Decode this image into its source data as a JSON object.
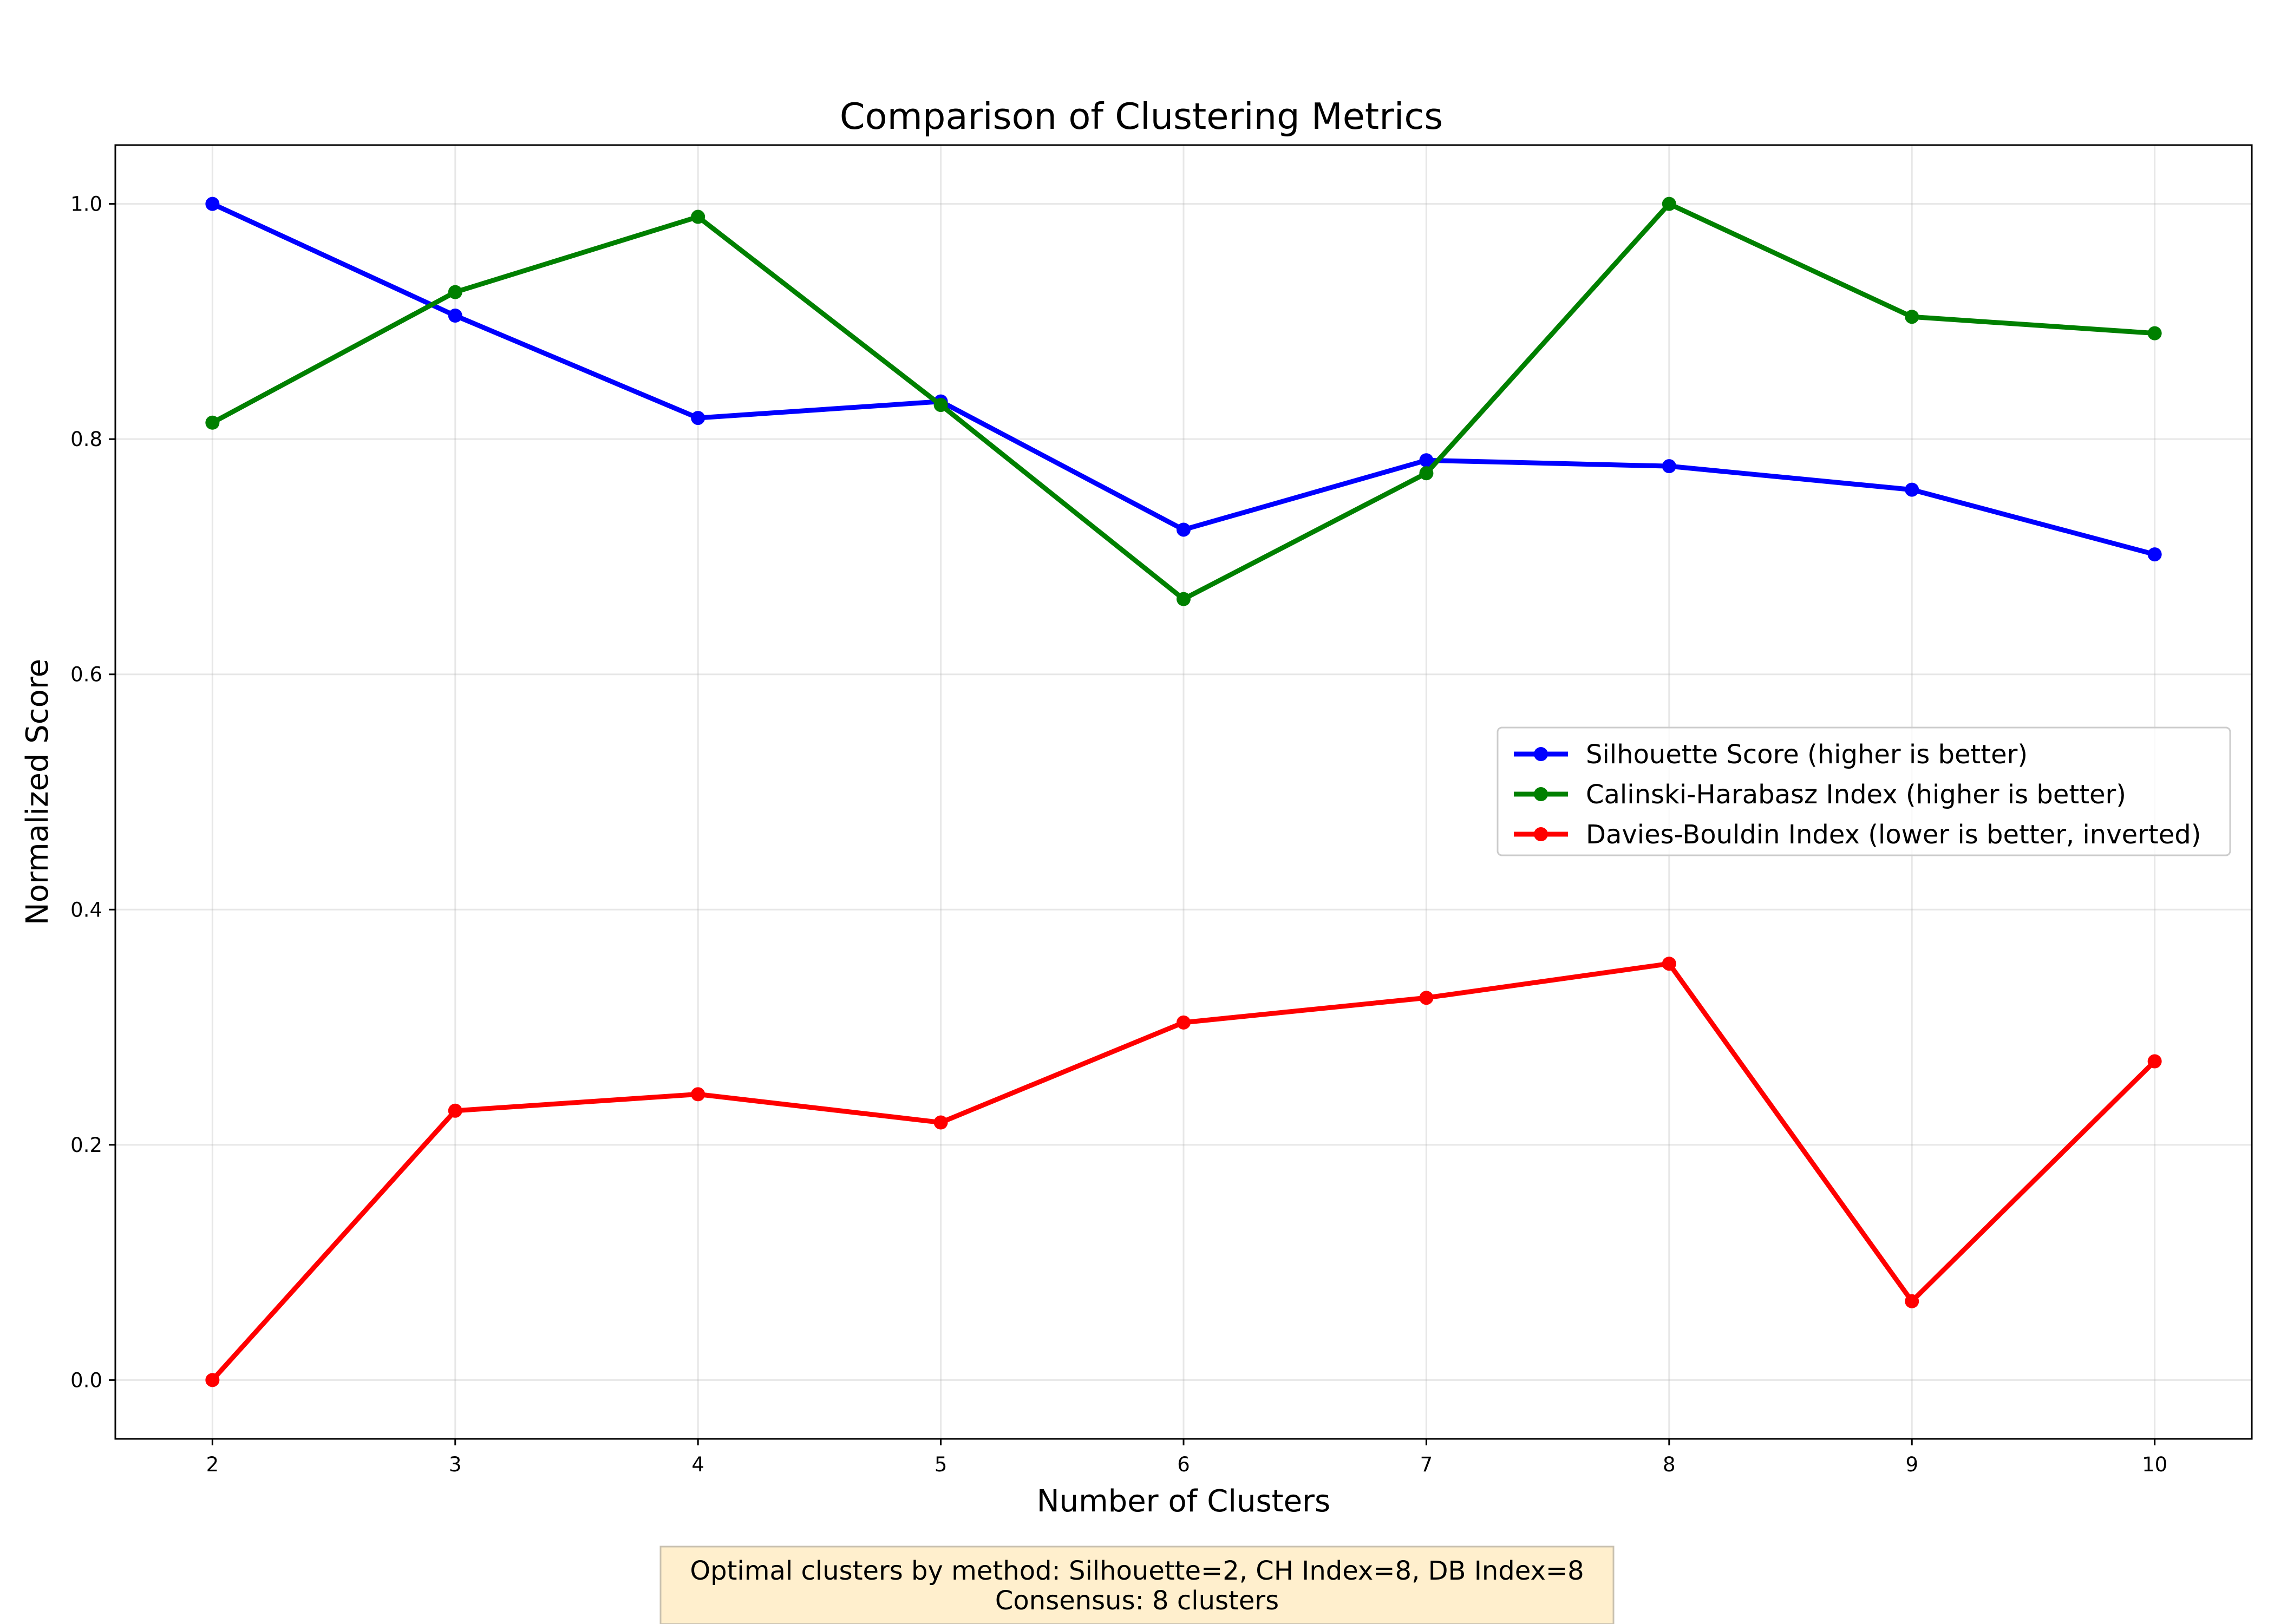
{
  "chart_data": {
    "type": "line",
    "title": "Comparison of Clustering Metrics",
    "xlabel": "Number of Clusters",
    "ylabel": "Normalized Score",
    "x": [
      2,
      3,
      4,
      5,
      6,
      7,
      8,
      9,
      10
    ],
    "xlim": [
      1.6,
      10.4
    ],
    "ylim": [
      -0.05,
      1.05
    ],
    "yticks": [
      0.0,
      0.2,
      0.4,
      0.6,
      0.8,
      1.0
    ],
    "ytick_labels": [
      "0.0",
      "0.2",
      "0.4",
      "0.6",
      "0.8",
      "1.0"
    ],
    "xtick_labels": [
      "2",
      "3",
      "4",
      "5",
      "6",
      "7",
      "8",
      "9",
      "10"
    ],
    "grid": true,
    "legend_position": "center-right",
    "series": [
      {
        "name": "Silhouette Score (higher is better)",
        "color": "#0000ff",
        "values": [
          1.0,
          0.905,
          0.818,
          0.832,
          0.723,
          0.782,
          0.777,
          0.757,
          0.702
        ]
      },
      {
        "name": "Calinski-Harabasz Index (higher is better)",
        "color": "#008000",
        "values": [
          0.814,
          0.925,
          0.989,
          0.829,
          0.664,
          0.771,
          1.0,
          0.904,
          0.89
        ]
      },
      {
        "name": "Davies-Bouldin Index (lower is better, inverted)",
        "color": "#ff0000",
        "values": [
          0.0,
          0.229,
          0.243,
          0.219,
          0.304,
          0.325,
          0.354,
          0.067,
          0.271
        ]
      }
    ],
    "annotation": {
      "line1": "Optimal clusters by method: Silhouette=2, CH Index=8, DB Index=8",
      "line2": "Consensus: 8 clusters"
    }
  }
}
